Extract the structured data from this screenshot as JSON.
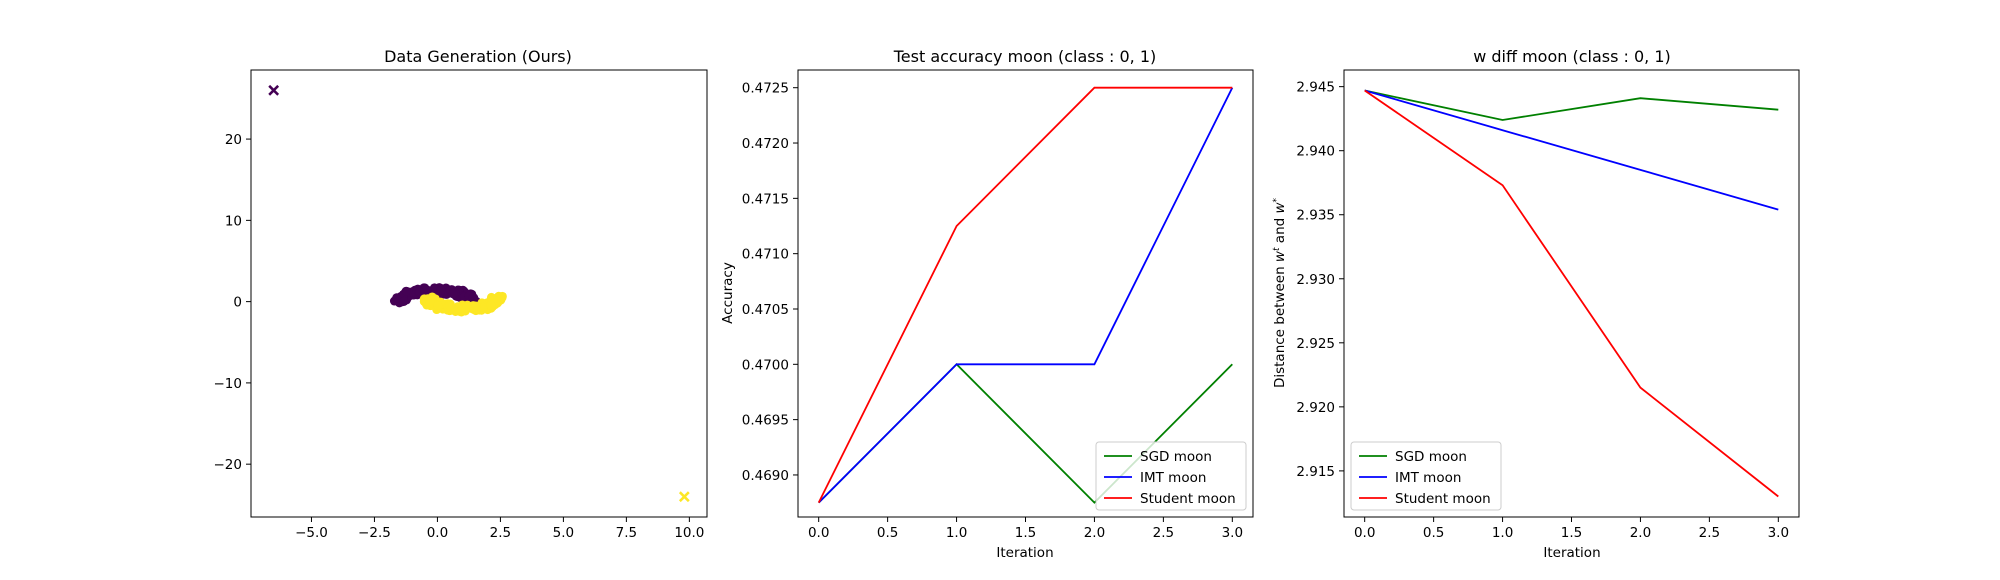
{
  "chart_data": [
    {
      "type": "scatter",
      "title": "Data Generation (Ours)",
      "xlabel": "",
      "ylabel": "",
      "xlim": [
        -7.4,
        10.7
      ],
      "ylim": [
        -26.5,
        28.5
      ],
      "xticks": [
        -5.0,
        -2.5,
        0.0,
        2.5,
        5.0,
        7.5,
        10.0
      ],
      "xtick_labels": [
        "−5.0",
        "−2.5",
        "0.0",
        "2.5",
        "5.0",
        "7.5",
        "10.0"
      ],
      "yticks": [
        -20,
        -10,
        0,
        10,
        20
      ],
      "ytick_labels": [
        "−20",
        "−10",
        "0",
        "10",
        "20"
      ],
      "grid": false,
      "colors": {
        "class0": "#440154",
        "class1": "#fde725"
      },
      "markers": [
        {
          "class": 0,
          "shape": "x",
          "x": -6.5,
          "y": 26.0
        },
        {
          "class": 1,
          "shape": "x",
          "x": 9.8,
          "y": -24.0
        }
      ],
      "clusters": [
        {
          "class": 0,
          "shape": "moon-upper",
          "x_range": [
            -1.6,
            1.5
          ],
          "y_range": [
            -0.6,
            1.9
          ]
        },
        {
          "class": 1,
          "shape": "moon-lower",
          "x_range": [
            -0.2,
            2.5
          ],
          "y_range": [
            -1.3,
            1.3
          ]
        }
      ]
    },
    {
      "type": "line",
      "title": "Test accuracy moon (class : 0, 1)",
      "xlabel": "Iteration",
      "ylabel": "Accuracy",
      "xlim": [
        -0.15,
        3.15
      ],
      "ylim": [
        0.46862,
        0.47266
      ],
      "xticks": [
        0.0,
        0.5,
        1.0,
        1.5,
        2.0,
        2.5,
        3.0
      ],
      "xtick_labels": [
        "0.0",
        "0.5",
        "1.0",
        "1.5",
        "2.0",
        "2.5",
        "3.0"
      ],
      "yticks": [
        0.469,
        0.4695,
        0.47,
        0.4705,
        0.471,
        0.4715,
        0.472,
        0.4725
      ],
      "ytick_labels": [
        "0.4690",
        "0.4695",
        "0.4700",
        "0.4705",
        "0.4710",
        "0.4715",
        "0.4720",
        "0.4725"
      ],
      "grid": false,
      "legend_position": "bottom-right",
      "x": [
        0,
        1,
        2,
        3
      ],
      "series": [
        {
          "name": "SGD moon",
          "color": "#008000",
          "values": [
            0.46875,
            0.47,
            0.46875,
            0.47
          ]
        },
        {
          "name": "IMT moon",
          "color": "#0000ff",
          "values": [
            0.46875,
            0.47,
            0.47,
            0.4725
          ]
        },
        {
          "name": "Student moon",
          "color": "#ff0000",
          "values": [
            0.46875,
            0.47125,
            0.4725,
            0.4725
          ]
        }
      ]
    },
    {
      "type": "line",
      "title": "w diff moon (class : 0, 1)",
      "xlabel": "Iteration",
      "ylabel": "Distance between w^t and w^*",
      "xlim": [
        -0.15,
        3.15
      ],
      "ylim": [
        2.9114,
        2.9463
      ],
      "xticks": [
        0.0,
        0.5,
        1.0,
        1.5,
        2.0,
        2.5,
        3.0
      ],
      "xtick_labels": [
        "0.0",
        "0.5",
        "1.0",
        "1.5",
        "2.0",
        "2.5",
        "3.0"
      ],
      "yticks": [
        2.915,
        2.92,
        2.925,
        2.93,
        2.935,
        2.94,
        2.945
      ],
      "ytick_labels": [
        "2.915",
        "2.920",
        "2.925",
        "2.930",
        "2.935",
        "2.940",
        "2.945"
      ],
      "grid": false,
      "legend_position": "bottom-left",
      "x": [
        0,
        1,
        2,
        3
      ],
      "series": [
        {
          "name": "SGD moon",
          "color": "#008000",
          "values": [
            2.9447,
            2.9424,
            2.9441,
            2.9432
          ]
        },
        {
          "name": "IMT moon",
          "color": "#0000ff",
          "values": [
            2.9447,
            2.9416,
            2.9385,
            2.9354
          ]
        },
        {
          "name": "Student moon",
          "color": "#ff0000",
          "values": [
            2.9447,
            2.9373,
            2.9215,
            2.913
          ]
        }
      ]
    }
  ]
}
